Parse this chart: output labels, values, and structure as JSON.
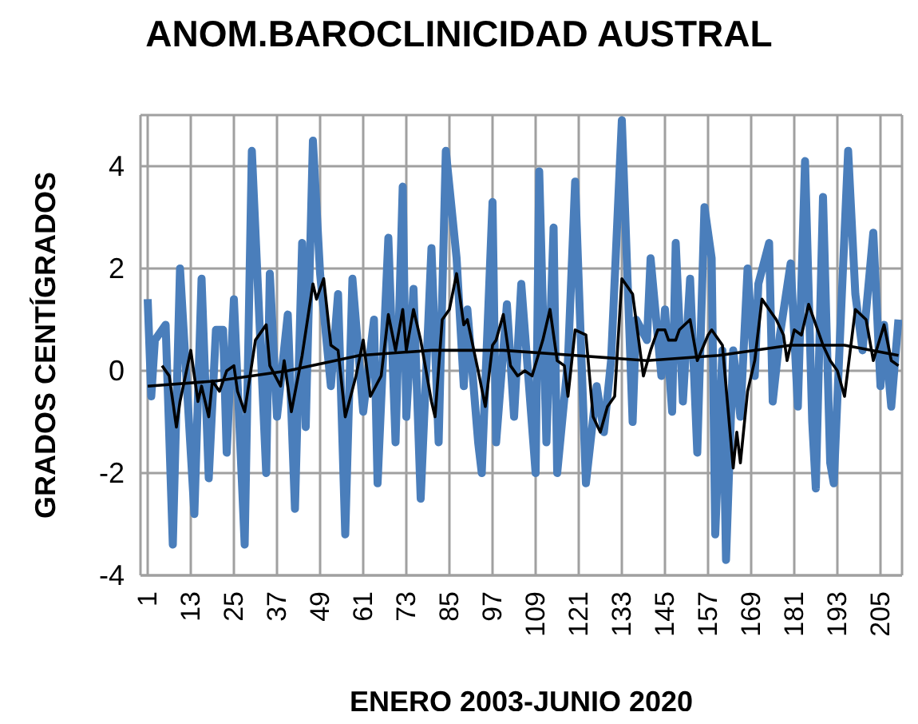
{
  "chart_data": {
    "type": "line",
    "title": "ANOM.BAROCLINICIDAD AUSTRAL",
    "xlabel": "ENERO 2003-JUNIO 2020",
    "ylabel": "GRADOS CENTÍGRADOS",
    "xlim": [
      -1,
      211
    ],
    "xticks": [
      1,
      13,
      25,
      37,
      49,
      61,
      73,
      85,
      97,
      109,
      121,
      133,
      145,
      157,
      169,
      181,
      193,
      205
    ],
    "ylim": [
      -4,
      5
    ],
    "yticks": [
      -4,
      -2,
      0,
      2,
      4
    ],
    "grid": true,
    "marker": "none",
    "line_style": "solid",
    "series": [
      {
        "color": "#4a7ebb",
        "x": [
          1,
          2,
          3,
          6,
          8,
          10,
          14,
          16,
          18,
          20,
          22,
          23,
          25,
          28,
          30,
          34,
          35,
          37,
          40,
          42,
          44,
          45,
          47,
          49,
          52,
          54,
          56,
          58,
          61,
          64,
          65,
          68,
          70,
          72,
          73,
          75,
          77,
          80,
          82,
          84,
          86,
          87,
          89,
          90,
          93,
          94,
          97,
          98,
          101,
          103,
          105,
          109,
          110,
          112,
          114,
          115,
          118,
          120,
          123,
          126,
          128,
          130,
          133,
          136,
          137,
          140,
          141,
          144,
          145,
          147,
          148,
          150,
          152,
          154,
          156,
          158,
          159,
          161,
          162,
          164,
          166,
          168,
          170,
          171,
          174,
          175,
          177,
          180,
          182,
          184,
          186,
          187,
          189,
          191,
          192,
          194,
          196,
          198,
          200,
          203,
          205,
          206,
          208,
          210
        ],
        "values": [
          1.4,
          -0.5,
          0.6,
          0.9,
          -3.4,
          2.0,
          -2.8,
          1.8,
          -2.1,
          0.8,
          0.8,
          -1.6,
          1.4,
          -3.4,
          4.3,
          -2.0,
          1.9,
          -0.9,
          1.1,
          -2.7,
          2.5,
          -1.1,
          4.5,
          1.9,
          -0.3,
          1.5,
          -3.2,
          1.8,
          -0.8,
          1.0,
          -2.2,
          2.6,
          -1.4,
          3.6,
          -0.9,
          1.6,
          -2.5,
          2.4,
          -1.4,
          4.3,
          2.9,
          2.2,
          -0.3,
          1.2,
          -1.4,
          -2.0,
          3.3,
          -1.4,
          1.3,
          -0.9,
          1.7,
          -2.0,
          3.9,
          -1.4,
          2.8,
          -2.0,
          0.2,
          3.7,
          -2.2,
          -0.3,
          -1.2,
          0.2,
          4.9,
          -1.0,
          1.0,
          0.6,
          2.2,
          -0.1,
          1.2,
          -0.8,
          2.5,
          -0.6,
          1.8,
          -1.6,
          3.2,
          2.2,
          -3.2,
          0.4,
          -3.7,
          0.4,
          -0.9,
          2.0,
          -0.1,
          1.7,
          2.5,
          -0.6,
          0.7,
          2.1,
          -0.7,
          4.1,
          -1.0,
          -2.3,
          3.4,
          -1.8,
          -2.2,
          1.1,
          4.3,
          1.5,
          0.4,
          2.7,
          -0.3,
          0.9,
          -0.7,
          1.0
        ]
      },
      {
        "color": "#000000",
        "x": [
          5,
          7,
          9,
          10,
          13,
          15,
          16,
          18,
          19,
          21,
          23,
          25,
          26,
          28,
          31,
          34,
          35,
          38,
          39,
          41,
          44,
          47,
          48,
          50,
          52,
          54,
          56,
          59,
          61,
          63,
          66,
          68,
          70,
          72,
          73,
          75,
          77,
          80,
          81,
          83,
          85,
          87,
          89,
          90,
          93,
          95,
          97,
          98,
          100,
          102,
          104,
          106,
          108,
          111,
          113,
          115,
          117,
          118,
          120,
          123,
          125,
          127,
          129,
          131,
          133,
          136,
          139,
          141,
          143,
          145,
          146,
          148,
          149,
          152,
          154,
          157,
          158,
          161,
          164,
          165,
          166,
          168,
          170,
          172,
          174,
          176,
          178,
          179,
          181,
          183,
          185,
          186,
          189,
          191,
          193,
          195,
          198,
          201,
          203,
          206,
          208,
          210
        ],
        "values": [
          0.1,
          -0.1,
          -1.1,
          -0.6,
          0.4,
          -0.6,
          -0.3,
          -0.9,
          -0.2,
          -0.4,
          0,
          0.1,
          -0.4,
          -0.8,
          0.6,
          0.9,
          0.1,
          -0.3,
          0.2,
          -0.8,
          0.3,
          1.7,
          1.4,
          1.8,
          0.5,
          0.4,
          -0.9,
          -0.1,
          0.6,
          -0.5,
          -0.1,
          1.1,
          0.4,
          1.2,
          0.4,
          1.2,
          0.6,
          -0.6,
          -0.9,
          1.0,
          1.2,
          1.9,
          0.9,
          1.0,
          0,
          -0.7,
          0.5,
          0.6,
          1.1,
          0.1,
          -0.1,
          0,
          -0.1,
          0.6,
          1.2,
          0.2,
          0.1,
          -0.5,
          0.8,
          0.7,
          -0.9,
          -1.2,
          -0.7,
          -0.5,
          1.8,
          1.5,
          -0.1,
          0.4,
          0.8,
          0.8,
          0.6,
          0.6,
          0.8,
          1.0,
          0.2,
          0.7,
          0.8,
          0.5,
          -1.9,
          -1.2,
          -1.8,
          -0.4,
          0.2,
          1.4,
          1.2,
          1.0,
          0.7,
          0.2,
          0.8,
          0.7,
          1.3,
          1.1,
          0.5,
          0.2,
          0,
          -0.5,
          1.2,
          1.0,
          0.2,
          0.9,
          0.2,
          0.1
        ]
      },
      {
        "color": "#000000",
        "x": [
          1,
          20,
          40,
          60,
          80,
          100,
          120,
          140,
          160,
          180,
          195,
          210
        ],
        "values": [
          -0.3,
          -0.2,
          0,
          0.3,
          0.4,
          0.4,
          0.3,
          0.2,
          0.3,
          0.5,
          0.5,
          0.3
        ]
      }
    ]
  }
}
